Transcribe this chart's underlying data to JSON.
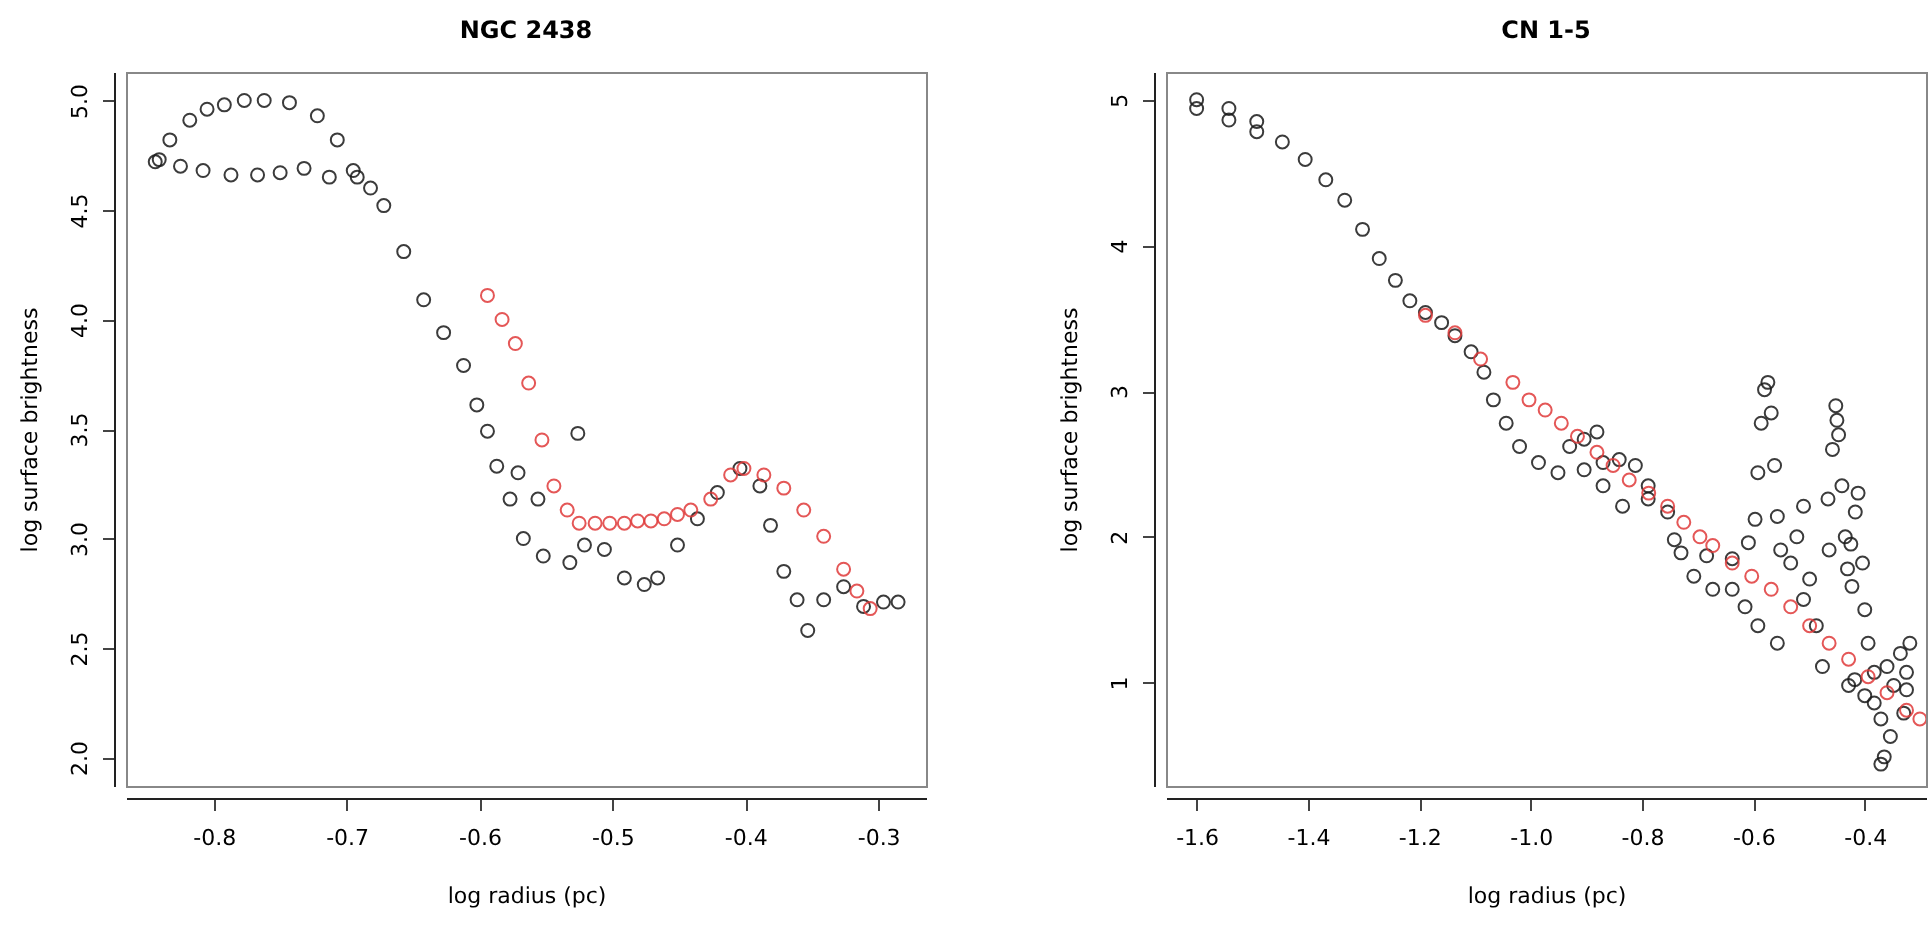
{
  "chart_data": [
    {
      "type": "scatter",
      "title": "NGC 2438",
      "xlabel": "log radius (pc)",
      "ylabel": "log surface brightness",
      "marker": "circle",
      "grid": false,
      "xlim": [
        -0.866,
        -0.264
      ],
      "ylim": [
        1.87,
        5.13
      ],
      "xticks": [
        -0.8,
        -0.7,
        -0.6,
        -0.5,
        -0.4,
        -0.3
      ],
      "yticks": [
        {
          "value": 2,
          "label": "2.0"
        },
        2.5,
        {
          "value": 3,
          "label": "3.0"
        },
        3.5,
        {
          "value": 4,
          "label": "4.0"
        },
        4.5,
        {
          "value": 5,
          "label": "5.0"
        }
      ],
      "series": [
        {
          "color": "#1a1a1a",
          "x": [
            -0.844,
            -0.833,
            -0.818,
            -0.805,
            -0.792,
            -0.777,
            -0.762,
            -0.743,
            -0.722,
            -0.707,
            -0.695,
            -0.841,
            -0.825,
            -0.808,
            -0.787,
            -0.767,
            -0.75,
            -0.732,
            -0.713,
            -0.692,
            -0.682,
            -0.672,
            -0.657,
            -0.642,
            -0.627,
            -0.612,
            -0.602,
            -0.594,
            -0.587,
            -0.577,
            -0.571,
            -0.567,
            -0.556,
            -0.552,
            -0.532,
            -0.526,
            -0.521,
            -0.506,
            -0.491,
            -0.476,
            -0.466,
            -0.451,
            -0.436,
            -0.421,
            -0.404,
            -0.389,
            -0.381,
            -0.371,
            -0.361,
            -0.353,
            -0.341,
            -0.326,
            -0.311,
            -0.296,
            -0.285
          ],
          "values": [
            4.72,
            4.82,
            4.91,
            4.96,
            4.98,
            5.0,
            5.0,
            4.99,
            4.93,
            4.82,
            4.68,
            4.73,
            4.7,
            4.68,
            4.66,
            4.66,
            4.67,
            4.69,
            4.65,
            4.65,
            4.6,
            4.52,
            4.31,
            4.09,
            3.94,
            3.79,
            3.61,
            3.49,
            3.33,
            3.18,
            3.3,
            3.0,
            3.18,
            2.92,
            2.89,
            3.48,
            2.97,
            2.95,
            2.82,
            2.79,
            2.82,
            2.97,
            3.09,
            3.21,
            3.32,
            3.24,
            3.06,
            2.85,
            2.72,
            2.58,
            2.72,
            2.78,
            2.69,
            2.71,
            2.71
          ]
        },
        {
          "color": "#e03a3a",
          "x": [
            -0.594,
            -0.583,
            -0.573,
            -0.563,
            -0.553,
            -0.544,
            -0.534,
            -0.525,
            -0.513,
            -0.502,
            -0.491,
            -0.481,
            -0.471,
            -0.461,
            -0.451,
            -0.441,
            -0.426,
            -0.411,
            -0.401,
            -0.386,
            -0.371,
            -0.356,
            -0.341,
            -0.326,
            -0.316,
            -0.306
          ],
          "values": [
            4.11,
            4.0,
            3.89,
            3.71,
            3.45,
            3.24,
            3.13,
            3.07,
            3.07,
            3.07,
            3.07,
            3.08,
            3.08,
            3.09,
            3.11,
            3.13,
            3.18,
            3.29,
            3.32,
            3.29,
            3.23,
            3.13,
            3.01,
            2.86,
            2.76,
            2.68
          ]
        }
      ]
    },
    {
      "type": "scatter",
      "title": "CN 1-5",
      "xlabel": "log radius (pc)",
      "ylabel": "log surface brightness",
      "marker": "circle",
      "grid": false,
      "xlim": [
        -1.655,
        -0.29
      ],
      "ylim": [
        0.29,
        5.19
      ],
      "xticks": [
        -1.6,
        -1.4,
        -1.2,
        {
          "value": -1,
          "label": "-1.0"
        },
        -0.8,
        -0.6,
        -0.4
      ],
      "yticks": [
        1,
        2,
        3,
        4,
        5
      ],
      "series": [
        {
          "color": "#1a1a1a",
          "x": [
            -1.6,
            -1.6,
            -1.542,
            -1.542,
            -1.492,
            -1.492,
            -1.446,
            -1.405,
            -1.368,
            -1.334,
            -1.302,
            -1.272,
            -1.243,
            -1.217,
            -1.189,
            -1.16,
            -1.136,
            -1.107,
            -1.084,
            -1.067,
            -1.044,
            -1.02,
            -0.986,
            -0.951,
            -0.93,
            -0.904,
            -0.904,
            -0.881,
            -0.87,
            -0.841,
            -0.812,
            -0.789,
            -0.87,
            -0.835,
            -0.789,
            -0.754,
            -0.73,
            -0.707,
            -0.673,
            -0.638,
            -0.615,
            -0.592,
            -0.557,
            -0.742,
            -0.684,
            -0.638,
            -0.609,
            -0.574,
            -0.58,
            -0.568,
            -0.586,
            -0.592,
            -0.562,
            -0.597,
            -0.557,
            -0.551,
            -0.51,
            -0.522,
            -0.533,
            -0.499,
            -0.51,
            -0.487,
            -0.452,
            -0.45,
            -0.447,
            -0.458,
            -0.441,
            -0.412,
            -0.417,
            -0.466,
            -0.464,
            -0.435,
            -0.425,
            -0.431,
            -0.404,
            -0.423,
            -0.4,
            -0.394,
            -0.476,
            -0.429,
            -0.383,
            -0.371,
            -0.354,
            -0.365,
            -0.371,
            -0.36,
            -0.336,
            -0.319,
            -0.325,
            -0.325,
            -0.33,
            -0.4,
            -0.418,
            -0.383,
            -0.348
          ],
          "values": [
            5.0,
            4.94,
            4.94,
            4.86,
            4.85,
            4.78,
            4.71,
            4.59,
            4.45,
            4.31,
            4.11,
            3.91,
            3.76,
            3.62,
            3.54,
            3.47,
            3.38,
            3.27,
            3.13,
            2.94,
            2.78,
            2.62,
            2.51,
            2.44,
            2.62,
            2.46,
            2.67,
            2.72,
            2.51,
            2.53,
            2.49,
            2.35,
            2.35,
            2.21,
            2.26,
            2.17,
            1.89,
            1.73,
            1.64,
            1.64,
            1.52,
            1.39,
            1.27,
            1.98,
            1.87,
            1.85,
            1.96,
            3.06,
            3.01,
            2.85,
            2.78,
            2.44,
            2.49,
            2.12,
            2.14,
            1.91,
            2.21,
            2.0,
            1.82,
            1.71,
            1.57,
            1.39,
            2.9,
            2.8,
            2.7,
            2.6,
            2.35,
            2.3,
            2.17,
            2.26,
            1.91,
            2.0,
            1.95,
            1.78,
            1.82,
            1.66,
            1.5,
            1.27,
            1.11,
            0.98,
            0.86,
            0.75,
            0.63,
            0.49,
            0.44,
            1.11,
            1.2,
            1.27,
            1.07,
            0.95,
            0.79,
            0.91,
            1.02,
            1.07,
            0.98
          ]
        },
        {
          "color": "#e03a3a",
          "x": [
            -1.189,
            -1.136,
            -1.09,
            -1.032,
            -1.003,
            -0.974,
            -0.945,
            -0.916,
            -0.881,
            -0.852,
            -0.823,
            -0.788,
            -0.754,
            -0.725,
            -0.696,
            -0.673,
            -0.638,
            -0.603,
            -0.568,
            -0.533,
            -0.499,
            -0.464,
            -0.429,
            -0.394,
            -0.36,
            -0.325,
            -0.301
          ],
          "values": [
            3.52,
            3.4,
            3.22,
            3.06,
            2.94,
            2.87,
            2.78,
            2.69,
            2.58,
            2.49,
            2.39,
            2.3,
            2.21,
            2.1,
            2.0,
            1.94,
            1.82,
            1.73,
            1.64,
            1.52,
            1.39,
            1.27,
            1.16,
            1.04,
            0.93,
            0.81,
            0.75
          ]
        }
      ]
    }
  ]
}
